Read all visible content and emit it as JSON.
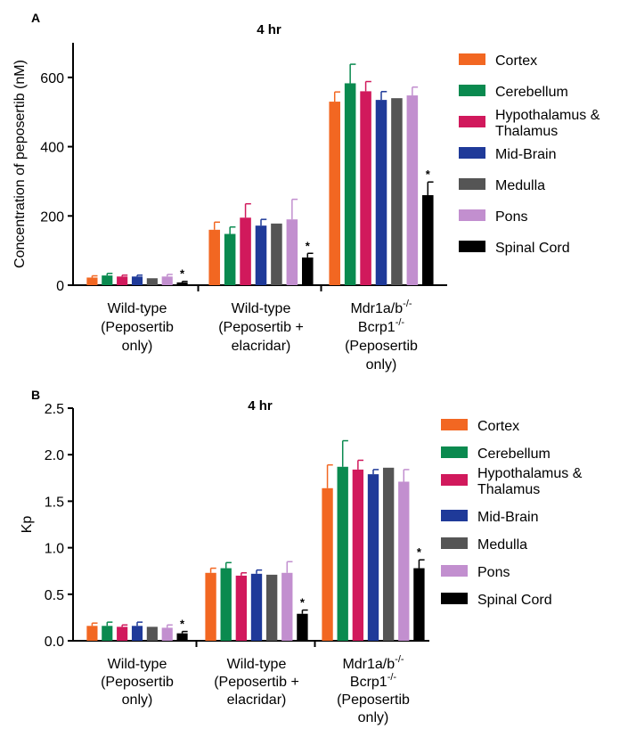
{
  "colors": {
    "Cortex": "#f26722",
    "Cerebellum": "#0a8a4f",
    "Hypothalamus & Thalamus": "#d1195c",
    "Mid-Brain": "#1f3a99",
    "Medulla": "#555555",
    "Pons": "#c28fcf",
    "Spinal Cord": "#000000"
  },
  "chart_data": [
    {
      "panel": "A",
      "type": "bar",
      "title": "4 hr",
      "ylabel": "Concentration of peposertib (nM)",
      "ylim": [
        0,
        700
      ],
      "yticks": [
        0,
        200,
        400,
        600
      ],
      "categories": [
        [
          "Wild-type",
          "(Peposertib",
          "only)"
        ],
        [
          "Wild-type",
          "(Peposertib +",
          "elacridar)"
        ],
        [
          "Mdr1a/b",
          "Bcrp1",
          "(Peposertib",
          "only)"
        ]
      ],
      "category_superscripts": [
        [],
        [],
        [
          "-/-",
          "-/-"
        ]
      ],
      "legend": [
        "Cortex",
        "Cerebellum",
        "Hypothalamus & Thalamus",
        "Mid-Brain",
        "Medulla",
        "Pons",
        "Spinal Cord"
      ],
      "series": [
        {
          "name": "Cortex",
          "values": [
            22,
            160,
            530
          ],
          "errors": [
            5,
            22,
            28
          ]
        },
        {
          "name": "Cerebellum",
          "values": [
            28,
            148,
            583
          ],
          "errors": [
            6,
            20,
            55
          ]
        },
        {
          "name": "Hypothalamus & Thalamus",
          "values": [
            25,
            195,
            560
          ],
          "errors": [
            4,
            40,
            28
          ]
        },
        {
          "name": "Mid-Brain",
          "values": [
            25,
            172,
            535
          ],
          "errors": [
            4,
            18,
            24
          ]
        },
        {
          "name": "Medulla",
          "values": [
            20,
            178,
            540
          ],
          "errors": [
            0,
            0,
            0
          ]
        },
        {
          "name": "Pons",
          "values": [
            25,
            190,
            548
          ],
          "errors": [
            6,
            58,
            24
          ]
        },
        {
          "name": "Spinal Cord",
          "values": [
            8,
            80,
            260
          ],
          "errors": [
            3,
            12,
            38
          ]
        }
      ],
      "significance": [
        "*",
        "*",
        "*"
      ]
    },
    {
      "panel": "B",
      "type": "bar",
      "title": "4 hr",
      "ylabel": "Kp",
      "ylim": [
        0,
        2.5
      ],
      "yticks": [
        "0.0",
        "0.5",
        "1.0",
        "1.5",
        "2.0",
        "2.5"
      ],
      "categories": [
        [
          "Wild-type",
          "(Peposertib",
          "only)"
        ],
        [
          "Wild-type",
          "(Peposertib +",
          "elacridar)"
        ],
        [
          "Mdr1a/b",
          "Bcrp1",
          "(Peposertib",
          "only)"
        ]
      ],
      "category_superscripts": [
        [],
        [],
        [
          "-/-",
          "-/-"
        ]
      ],
      "legend": [
        "Cortex",
        "Cerebellum",
        "Hypothalamus & Thalamus",
        "Mid-Brain",
        "Medulla",
        "Pons",
        "Spinal Cord"
      ],
      "series": [
        {
          "name": "Cortex",
          "values": [
            0.16,
            0.73,
            1.64
          ],
          "errors": [
            0.03,
            0.05,
            0.25
          ]
        },
        {
          "name": "Cerebellum",
          "values": [
            0.16,
            0.78,
            1.87
          ],
          "errors": [
            0.04,
            0.06,
            0.28
          ]
        },
        {
          "name": "Hypothalamus & Thalamus",
          "values": [
            0.15,
            0.7,
            1.84
          ],
          "errors": [
            0.02,
            0.03,
            0.1
          ]
        },
        {
          "name": "Mid-Brain",
          "values": [
            0.16,
            0.72,
            1.79
          ],
          "errors": [
            0.04,
            0.04,
            0.05
          ]
        },
        {
          "name": "Medulla",
          "values": [
            0.15,
            0.71,
            1.86
          ],
          "errors": [
            0,
            0,
            0
          ]
        },
        {
          "name": "Pons",
          "values": [
            0.14,
            0.73,
            1.71
          ],
          "errors": [
            0.03,
            0.12,
            0.13
          ]
        },
        {
          "name": "Spinal Cord",
          "values": [
            0.08,
            0.29,
            0.78
          ],
          "errors": [
            0.02,
            0.04,
            0.09
          ]
        }
      ],
      "significance": [
        "*",
        "*",
        "*"
      ]
    }
  ]
}
